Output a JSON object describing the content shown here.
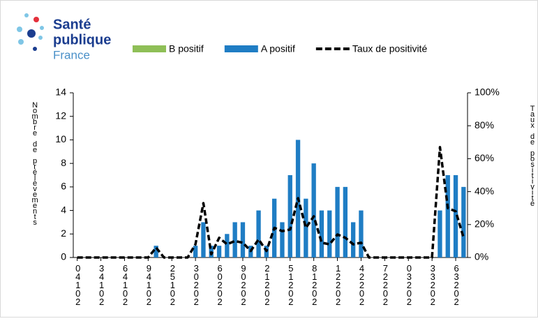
{
  "logo": {
    "line1": "Santé",
    "line2": "publique",
    "line3": "France"
  },
  "chart_data": {
    "type": "bar-line",
    "y_label": "Nombre de prélèvements",
    "y2_label": "Taux de positivité",
    "categories": [
      "04102",
      null,
      null,
      "34102",
      null,
      null,
      "64102",
      null,
      null,
      "94102",
      null,
      null,
      "25102",
      null,
      null,
      "30202",
      null,
      null,
      "60202",
      null,
      null,
      "90202",
      null,
      null,
      "21202",
      null,
      null,
      "51202",
      null,
      null,
      "81202",
      null,
      null,
      "12202",
      null,
      null,
      "42202",
      null,
      null,
      "72202",
      null,
      null,
      "03202",
      null,
      null,
      "33202",
      null,
      null,
      "63202",
      null
    ],
    "series": [
      {
        "name": "B positif",
        "color": "#8fbf57",
        "kind": "bar",
        "values": [
          0,
          0,
          0,
          0,
          0,
          0,
          0,
          0,
          0,
          0,
          0,
          0,
          0,
          0,
          0,
          0,
          0,
          0,
          0,
          0,
          0,
          0,
          0,
          0,
          0,
          0,
          0,
          0,
          0,
          0,
          0,
          0,
          0,
          0,
          0,
          0,
          0,
          0,
          0,
          0,
          0,
          0,
          0,
          0,
          0,
          0,
          0,
          0,
          0,
          0
        ]
      },
      {
        "name": "A positif",
        "color": "#1f7dc4",
        "kind": "bar",
        "values": [
          0,
          0,
          0,
          0,
          0,
          0,
          0,
          0,
          0,
          0,
          1,
          0,
          0,
          0,
          0,
          1,
          3,
          1,
          1,
          2,
          3,
          3,
          1,
          4,
          1,
          5,
          3,
          7,
          10,
          5,
          8,
          4,
          4,
          6,
          6,
          3,
          4,
          0,
          0,
          0,
          0,
          0,
          0,
          0,
          0,
          0,
          4,
          7,
          7,
          6
        ]
      },
      {
        "name": "Taux de positivité",
        "color": "#000000",
        "kind": "line",
        "axis": "y2",
        "values": [
          0,
          0,
          0,
          0,
          0,
          0,
          0,
          0,
          0,
          0,
          6,
          0,
          0,
          0,
          0,
          8,
          33,
          2,
          12,
          8,
          10,
          9,
          4,
          11,
          4,
          18,
          16,
          17,
          36,
          18,
          25,
          9,
          8,
          14,
          12,
          8,
          9,
          0,
          0,
          0,
          0,
          0,
          0,
          0,
          0,
          0,
          67,
          30,
          28,
          12
        ]
      }
    ],
    "ylim": [
      0,
      14
    ],
    "yticks": [
      0,
      2,
      4,
      6,
      8,
      10,
      12,
      14
    ],
    "y2lim": [
      0,
      100
    ],
    "y2ticks": [
      {
        "value": 0,
        "label": "0%"
      },
      {
        "value": 20,
        "label": "20%"
      },
      {
        "value": 40,
        "label": "40%"
      },
      {
        "value": 60,
        "label": "60%"
      },
      {
        "value": 80,
        "label": "80%"
      },
      {
        "value": 100,
        "label": "100%"
      }
    ],
    "grid": false
  }
}
